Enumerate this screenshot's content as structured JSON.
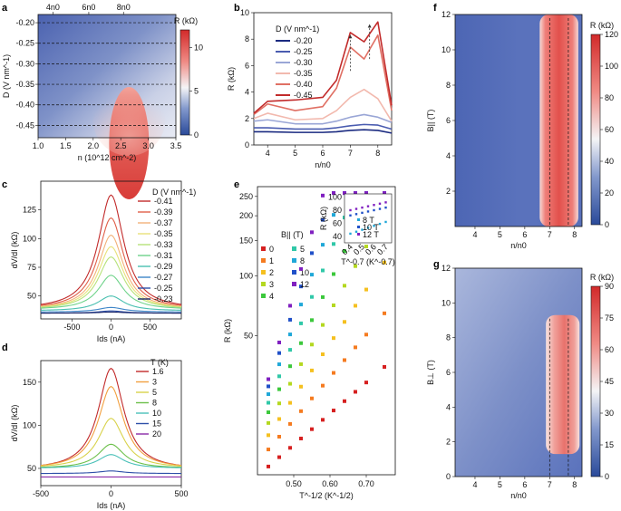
{
  "chart_data": [
    {
      "panel": "a",
      "type": "heatmap",
      "xlabel": "n (10^12 cm^-2)",
      "ylabel": "D (V nm^-1)",
      "xlim": [
        1.0,
        3.5
      ],
      "ylim": [
        -0.48,
        -0.18
      ],
      "xticks": [
        "1.0",
        "1.5",
        "2.0",
        "2.5",
        "3.0",
        "3.5"
      ],
      "yticks": [
        "-0.20",
        "-0.25",
        "-0.30",
        "-0.35",
        "-0.40",
        "-0.45"
      ],
      "top_labels": [
        "4n0",
        "6n0",
        "8n0"
      ],
      "top_label_x": [
        1.27,
        1.92,
        2.55
      ],
      "colorbar": {
        "label": "R (kΩ)",
        "ticks": [
          0,
          5,
          10
        ],
        "range": [
          0,
          12
        ]
      },
      "dashed_D": [
        -0.2,
        -0.25,
        -0.3,
        -0.35,
        -0.4,
        -0.45
      ]
    },
    {
      "panel": "b",
      "type": "line",
      "xlabel": "n/n0",
      "ylabel": "R (kΩ)",
      "xlim": [
        3.5,
        8.5
      ],
      "ylim": [
        0,
        10
      ],
      "xticks": [
        "4",
        "5",
        "6",
        "7",
        "8"
      ],
      "yticks": [
        "0",
        "2",
        "4",
        "6",
        "8",
        "10"
      ],
      "legend_title": "D (V nm^-1)",
      "series": [
        {
          "name": "-0.20",
          "color": "#1a2a80",
          "x": [
            3.5,
            4,
            5,
            6,
            6.5,
            7,
            7.5,
            8,
            8.5
          ],
          "y": [
            1.0,
            1.0,
            0.95,
            0.95,
            1.0,
            1.1,
            1.15,
            1.1,
            0.9
          ]
        },
        {
          "name": "-0.25",
          "color": "#4a5cb0",
          "x": [
            3.5,
            4,
            5,
            6,
            6.5,
            7,
            7.5,
            8,
            8.5
          ],
          "y": [
            1.3,
            1.3,
            1.2,
            1.2,
            1.3,
            1.45,
            1.55,
            1.5,
            1.2
          ]
        },
        {
          "name": "-0.30",
          "color": "#9aa6d6",
          "x": [
            3.5,
            4,
            5,
            6,
            6.5,
            7,
            7.5,
            8,
            8.5
          ],
          "y": [
            1.8,
            1.9,
            1.6,
            1.6,
            1.8,
            2.1,
            2.3,
            2.1,
            1.7
          ]
        },
        {
          "name": "-0.35",
          "color": "#f2b9ae",
          "x": [
            3.5,
            4,
            5,
            6,
            6.5,
            7,
            7.5,
            8,
            8.5
          ],
          "y": [
            2.0,
            2.4,
            1.9,
            2.0,
            2.6,
            3.6,
            4.2,
            3.5,
            1.8
          ]
        },
        {
          "name": "-0.40",
          "color": "#e07064",
          "x": [
            3.5,
            4,
            5,
            6,
            6.5,
            7,
            7.5,
            8,
            8.5
          ],
          "y": [
            2.3,
            3.1,
            2.6,
            2.9,
            4.3,
            7.4,
            6.5,
            8.3,
            2.6
          ]
        },
        {
          "name": "-0.45",
          "color": "#c22b2b",
          "x": [
            3.5,
            4,
            5,
            6,
            6.5,
            7,
            7.5,
            8,
            8.5
          ],
          "y": [
            2.4,
            3.3,
            3.4,
            3.6,
            4.9,
            8.5,
            7.8,
            9.3,
            3.0
          ]
        }
      ],
      "arrows": [
        {
          "x": 7.0,
          "y_from": 5.6,
          "y_to": 8.2
        },
        {
          "x": 7.7,
          "y_from": 6.5,
          "y_to": 9.0
        }
      ]
    },
    {
      "panel": "c",
      "type": "line",
      "xlabel": "Ids (nA)",
      "ylabel": "dV/dI (kΩ)",
      "xlim": [
        -900,
        900
      ],
      "ylim": [
        30,
        150
      ],
      "xticks": [
        "-500",
        "0",
        "500"
      ],
      "yticks": [
        "50",
        "75",
        "100",
        "125"
      ],
      "legend_title": "D (V nm^-1)",
      "series": [
        {
          "name": "-0.41",
          "color": "#c22b2b",
          "peak": 138,
          "base": 38
        },
        {
          "name": "-0.39",
          "color": "#e0604a",
          "peak": 118,
          "base": 38
        },
        {
          "name": "-0.37",
          "color": "#f2b27a",
          "peak": 103,
          "base": 38
        },
        {
          "name": "-0.35",
          "color": "#e8e27a",
          "peak": 93,
          "base": 38
        },
        {
          "name": "-0.33",
          "color": "#b7e27a",
          "peak": 84,
          "base": 38
        },
        {
          "name": "-0.31",
          "color": "#6fd38a",
          "peak": 68,
          "base": 38
        },
        {
          "name": "-0.29",
          "color": "#4ac0b0",
          "peak": 50,
          "base": 37
        },
        {
          "name": "-0.27",
          "color": "#3f86c8",
          "peak": 40,
          "base": 36
        },
        {
          "name": "-0.25",
          "color": "#2d4fa8",
          "peak": 37,
          "base": 35
        },
        {
          "name": "-0.23",
          "color": "#1a2466",
          "peak": 36,
          "base": 35
        }
      ]
    },
    {
      "panel": "d",
      "type": "line",
      "xlabel": "Ids (nA)",
      "ylabel": "dV/dI (kΩ)",
      "xlim": [
        -500,
        500
      ],
      "ylim": [
        30,
        175
      ],
      "xticks": [
        "-500",
        "0",
        "500"
      ],
      "yticks": [
        "50",
        "100",
        "150"
      ],
      "legend_title": "T (K)",
      "series": [
        {
          "name": "1.6",
          "color": "#c22b2b",
          "peak": 166,
          "base": 48
        },
        {
          "name": "3",
          "color": "#f2a040",
          "peak": 145,
          "base": 49
        },
        {
          "name": "5",
          "color": "#d8d24a",
          "peak": 108,
          "base": 50
        },
        {
          "name": "8",
          "color": "#6cc04a",
          "peak": 78,
          "base": 50
        },
        {
          "name": "10",
          "color": "#4ac0b8",
          "peak": 66,
          "base": 50
        },
        {
          "name": "15",
          "color": "#2d4fa8",
          "peak": 47,
          "base": 44
        },
        {
          "name": "20",
          "color": "#8a2aa8",
          "peak": 40,
          "base": 40
        }
      ]
    },
    {
      "panel": "e",
      "type": "scatter",
      "xlabel": "T^-1/2 (K^-1/2)",
      "ylabel": "R (kΩ)",
      "xlim": [
        0.4,
        0.78
      ],
      "ylim": [
        10,
        280
      ],
      "log_y": true,
      "xticks": [
        "0.50",
        "0.60",
        "0.70"
      ],
      "yticks": [
        "50",
        "100",
        "150",
        "200",
        "250"
      ],
      "legend_title": "B|| (T)",
      "series": [
        {
          "name": "0",
          "color": "#d62020"
        },
        {
          "name": "1",
          "color": "#f57b20"
        },
        {
          "name": "2",
          "color": "#f5c020"
        },
        {
          "name": "3",
          "color": "#b4d820"
        },
        {
          "name": "4",
          "color": "#3cc83c"
        },
        {
          "name": "5",
          "color": "#30c8a8"
        },
        {
          "name": "8",
          "color": "#20a8d8"
        },
        {
          "name": "10",
          "color": "#2050c8"
        },
        {
          "name": "12",
          "color": "#8020c0"
        }
      ],
      "inset": {
        "xlabel": "T^-0.7 (K^-0.7)",
        "ylabel": "R (kΩ)",
        "xticks": [
          "0.4",
          "0.5",
          "0.6",
          "0.7"
        ],
        "yticks": [
          "40",
          "60",
          "80",
          "100"
        ],
        "series": [
          {
            "name": "8 T",
            "color": "#20a8d8"
          },
          {
            "name": "10 T",
            "color": "#2050c8"
          },
          {
            "name": "12 T",
            "color": "#8020c0"
          }
        ]
      }
    },
    {
      "panel": "f",
      "type": "heatmap",
      "xlabel": "n/n0",
      "ylabel": "B|| (T)",
      "xlim": [
        3.2,
        8.3
      ],
      "ylim": [
        0,
        12
      ],
      "xticks": [
        "4",
        "5",
        "6",
        "7",
        "8"
      ],
      "yticks": [
        "2",
        "4",
        "6",
        "8",
        "10",
        "12"
      ],
      "colorbar": {
        "label": "R (kΩ)",
        "ticks": [
          0,
          20,
          40,
          60,
          80,
          100,
          120
        ],
        "range": [
          0,
          120
        ]
      },
      "dashed_x": [
        7.0,
        7.75
      ]
    },
    {
      "panel": "g",
      "type": "heatmap",
      "xlabel": "n/n0",
      "ylabel": "B⊥ (T)",
      "xlim": [
        3.2,
        8.3
      ],
      "ylim": [
        0,
        12
      ],
      "xticks": [
        "4",
        "5",
        "6",
        "7",
        "8"
      ],
      "yticks": [
        "0",
        "2",
        "4",
        "6",
        "8",
        "10",
        "12"
      ],
      "colorbar": {
        "label": "R (kΩ)",
        "ticks": [
          0,
          15,
          30,
          45,
          60,
          75,
          90
        ],
        "range": [
          0,
          90
        ]
      },
      "dashed_x": [
        7.0,
        7.75
      ]
    }
  ],
  "panel_labels": [
    "a",
    "b",
    "c",
    "d",
    "e",
    "f",
    "g"
  ]
}
